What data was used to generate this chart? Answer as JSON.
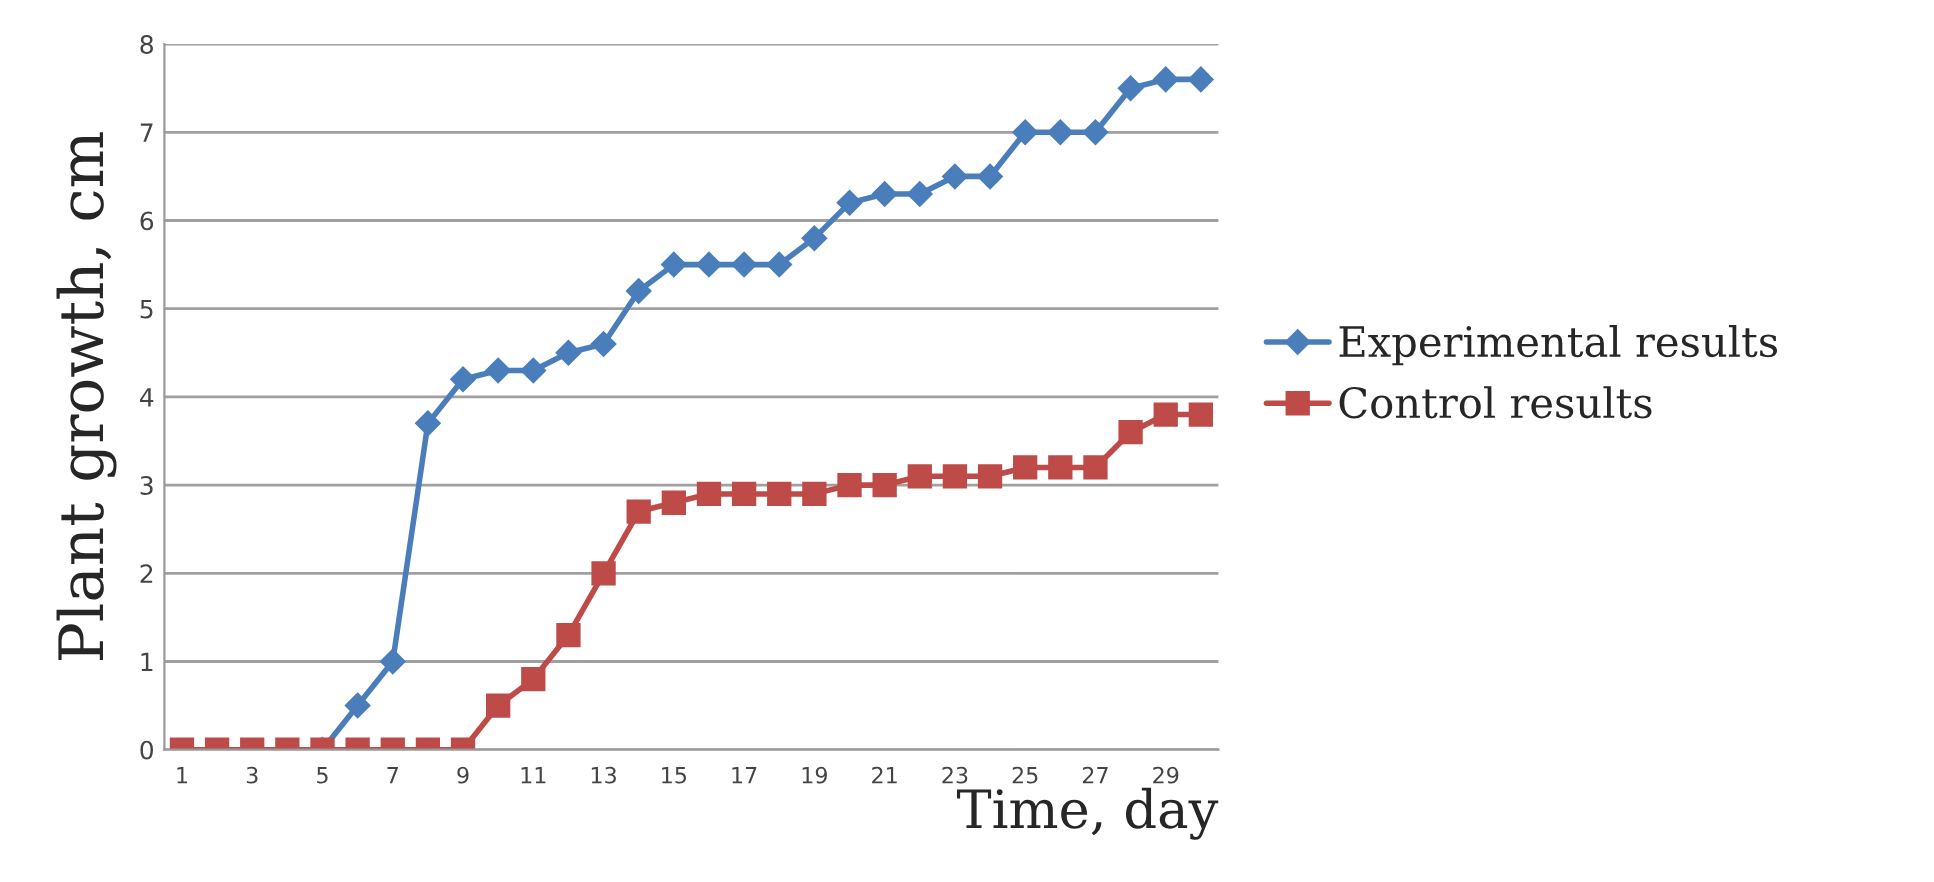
{
  "chart_data": {
    "type": "line",
    "xlabel": "Time, day",
    "ylabel": "Plant growth, cm",
    "categories": [
      "1",
      null,
      "3",
      null,
      "5",
      null,
      "7",
      null,
      "9",
      null,
      "11",
      null,
      "13",
      null,
      "15",
      null,
      "17",
      null,
      "19",
      null,
      "21",
      null,
      "23",
      null,
      "25",
      null,
      "27",
      null,
      "29",
      null
    ],
    "series": [
      {
        "name": "Experimental results",
        "color": "#4a7ebb",
        "marker": "diamond",
        "values": [
          null,
          null,
          null,
          null,
          0,
          0.5,
          1,
          3.7,
          4.2,
          4.3,
          4.3,
          4.5,
          4.6,
          5.2,
          5.5,
          5.5,
          5.5,
          5.5,
          5.8,
          6.2,
          6.3,
          6.3,
          6.5,
          6.5,
          7.0,
          7.0,
          7.0,
          7.5,
          7.6,
          7.6
        ]
      },
      {
        "name": "Control results",
        "color": "#be4b48",
        "marker": "square",
        "values": [
          0,
          0,
          0,
          0,
          0,
          0,
          0,
          0,
          0,
          0.5,
          0.8,
          1.3,
          2.0,
          2.7,
          2.8,
          2.9,
          2.9,
          2.9,
          2.9,
          3.0,
          3.0,
          3.1,
          3.1,
          3.1,
          3.2,
          3.2,
          3.2,
          3.6,
          3.8,
          3.8
        ]
      }
    ],
    "ylim": [
      0,
      8
    ],
    "yticks": [
      0,
      1,
      2,
      3,
      4,
      5,
      6,
      7,
      8
    ],
    "grid": "y",
    "legend": "right",
    "line_style": "solid"
  }
}
